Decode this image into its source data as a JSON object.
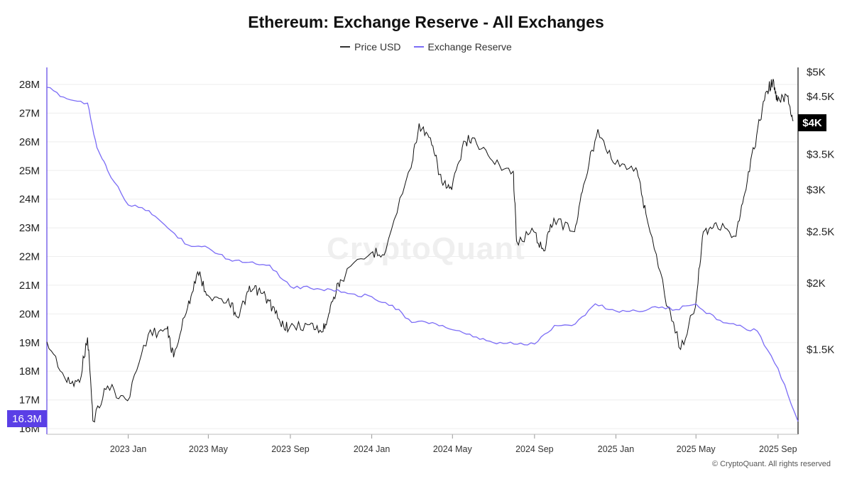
{
  "title": "Ethereum: Exchange Reserve - All Exchanges",
  "watermark": "CryptoQuant",
  "copyright": "© CryptoQuant. All rights reserved",
  "colors": {
    "price": "#111111",
    "reserve": "#7b6cf6",
    "badge_reserve": "#5a3fe6",
    "badge_price": "#000000"
  },
  "chart_data": {
    "type": "line",
    "title": "Ethereum: Exchange Reserve - All Exchanges",
    "legend": [
      "Price USD",
      "Exchange Reserve"
    ],
    "legend_placement": "top-center",
    "grid": true,
    "x_axis": {
      "ticks": [
        "2023 Jan",
        "2023 May",
        "2023 Sep",
        "2024 Jan",
        "2024 May",
        "2024 Sep",
        "2025 Jan",
        "2025 May",
        "2025 Sep"
      ],
      "range": [
        "2022-09-01",
        "2025-10-01"
      ]
    },
    "y_left": {
      "label": "",
      "ticks": [
        "28M",
        "27M",
        "26M",
        "25M",
        "24M",
        "23M",
        "22M",
        "21M",
        "20M",
        "19M",
        "18M",
        "17M",
        "16M"
      ],
      "range": [
        16000000,
        28300000
      ]
    },
    "y_right": {
      "label": "",
      "scale": "log",
      "ticks": [
        "$5K",
        "$4.5K",
        "$4K",
        "$3.5K",
        "$3K",
        "$2.5K",
        "$2K",
        "$1.5K"
      ],
      "range": [
        1000,
        5000
      ]
    },
    "current_values": {
      "reserve": "16.3M",
      "price": "$4K"
    },
    "series": [
      {
        "name": "Price USD",
        "axis": "right",
        "x": [
          "2022-09-01",
          "2022-10-01",
          "2022-10-20",
          "2022-11-01",
          "2022-11-09",
          "2022-12-01",
          "2022-12-31",
          "2023-01-31",
          "2023-02-28",
          "2023-03-10",
          "2023-03-31",
          "2023-04-15",
          "2023-04-30",
          "2023-05-31",
          "2023-06-15",
          "2023-06-30",
          "2023-07-15",
          "2023-07-31",
          "2023-08-17",
          "2023-08-31",
          "2023-09-30",
          "2023-10-20",
          "2023-10-31",
          "2023-11-15",
          "2023-12-31",
          "2024-01-22",
          "2024-02-29",
          "2024-03-12",
          "2024-03-31",
          "2024-04-15",
          "2024-04-30",
          "2024-05-20",
          "2024-05-31",
          "2024-06-30",
          "2024-07-31",
          "2024-08-05",
          "2024-08-31",
          "2024-09-15",
          "2024-09-30",
          "2024-10-31",
          "2024-11-15",
          "2024-12-05",
          "2024-12-31",
          "2025-01-31",
          "2025-02-15",
          "2025-03-15",
          "2025-04-08",
          "2025-04-30",
          "2025-05-12",
          "2025-05-31",
          "2025-06-30",
          "2025-07-15",
          "2025-07-31",
          "2025-08-15",
          "2025-08-24",
          "2025-08-31",
          "2025-09-15",
          "2025-09-24"
        ],
        "values": [
          1550,
          1300,
          1300,
          1580,
          1100,
          1280,
          1200,
          1600,
          1640,
          1450,
          1800,
          2100,
          1900,
          1870,
          1720,
          1930,
          1940,
          1850,
          1680,
          1650,
          1670,
          1620,
          1810,
          2030,
          2280,
          2300,
          3300,
          4000,
          3640,
          3100,
          3000,
          3700,
          3760,
          3400,
          3250,
          2400,
          2500,
          2300,
          2650,
          2500,
          3100,
          3900,
          3350,
          3300,
          2700,
          1900,
          1500,
          1800,
          2500,
          2600,
          2450,
          3000,
          3800,
          4600,
          4800,
          4400,
          4500,
          4050
        ]
      },
      {
        "name": "Exchange Reserve",
        "axis": "left",
        "x": [
          "2022-09-01",
          "2022-10-01",
          "2022-11-01",
          "2022-11-15",
          "2022-12-01",
          "2023-01-01",
          "2023-02-01",
          "2023-03-01",
          "2023-04-01",
          "2023-05-01",
          "2023-06-01",
          "2023-07-01",
          "2023-08-01",
          "2023-09-01",
          "2023-10-01",
          "2023-11-01",
          "2023-12-01",
          "2024-01-01",
          "2024-02-01",
          "2024-03-01",
          "2024-04-01",
          "2024-05-01",
          "2024-06-01",
          "2024-07-01",
          "2024-08-01",
          "2024-09-01",
          "2024-10-01",
          "2024-11-01",
          "2024-12-01",
          "2025-01-01",
          "2025-02-01",
          "2025-03-01",
          "2025-04-01",
          "2025-05-01",
          "2025-06-01",
          "2025-07-01",
          "2025-08-01",
          "2025-09-01",
          "2025-10-01"
        ],
        "values": [
          27900,
          27500,
          27350,
          25800,
          25000,
          23800,
          23600,
          23000,
          22400,
          22300,
          21900,
          21800,
          21700,
          20950,
          20900,
          20850,
          20700,
          20600,
          20300,
          19700,
          19700,
          19450,
          19200,
          19000,
          18950,
          18950,
          19600,
          19650,
          20350,
          20100,
          20100,
          20250,
          20150,
          20350,
          19800,
          19600,
          19400,
          18100,
          16250
        ],
        "unit_multiplier": 1000
      }
    ]
  }
}
